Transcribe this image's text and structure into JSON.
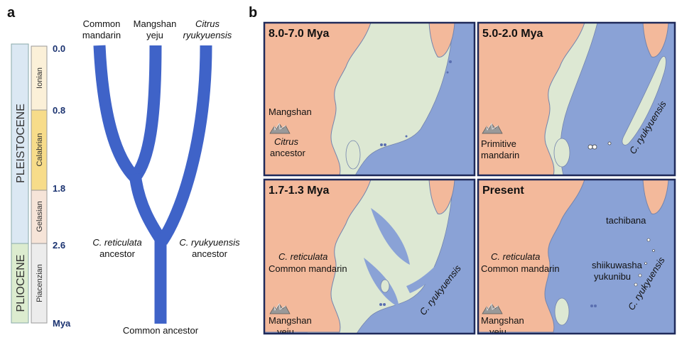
{
  "panel_a": {
    "label": "a",
    "epochs": [
      "PLEISTOCENE",
      "PLIOCENE"
    ],
    "stages": [
      "Ionian",
      "Calabrian",
      "Gelasian",
      "Piacenzian"
    ],
    "time_ticks": [
      "0.0",
      "0.8",
      "1.8",
      "2.6",
      "Mya"
    ],
    "taxa": [
      [
        "Common",
        "mandarin"
      ],
      [
        "Mangshan",
        "yeju"
      ],
      [
        "Citrus",
        "ryukyuensis"
      ]
    ],
    "ancestors": {
      "reticulata": [
        "C. reticulata",
        "ancestor"
      ],
      "ryukyuensis": [
        "C. ryukyuensis",
        "ancestor"
      ],
      "common": "Common ancestor"
    }
  },
  "panel_b": {
    "label": "b",
    "maps": [
      {
        "title": "8.0-7.0 Mya",
        "labels": [
          "Mangshan",
          "Citrus",
          "ancestor"
        ]
      },
      {
        "title": "5.0-2.0 Mya",
        "labels": [
          "Primitive",
          "mandarin",
          "C. ryukyuensis"
        ]
      },
      {
        "title": "1.7-1.3 Mya",
        "labels": [
          "C. reticulata",
          "Common mandarin",
          "Mangshan",
          "yeju",
          "C. ryukyuensis"
        ]
      },
      {
        "title": "Present",
        "labels": [
          "C. reticulata",
          "Common mandarin",
          "Mangshan",
          "yeju",
          "tachibana",
          "shiikuwasha",
          "yukunibu",
          "C. ryukyuensis"
        ]
      }
    ]
  }
}
